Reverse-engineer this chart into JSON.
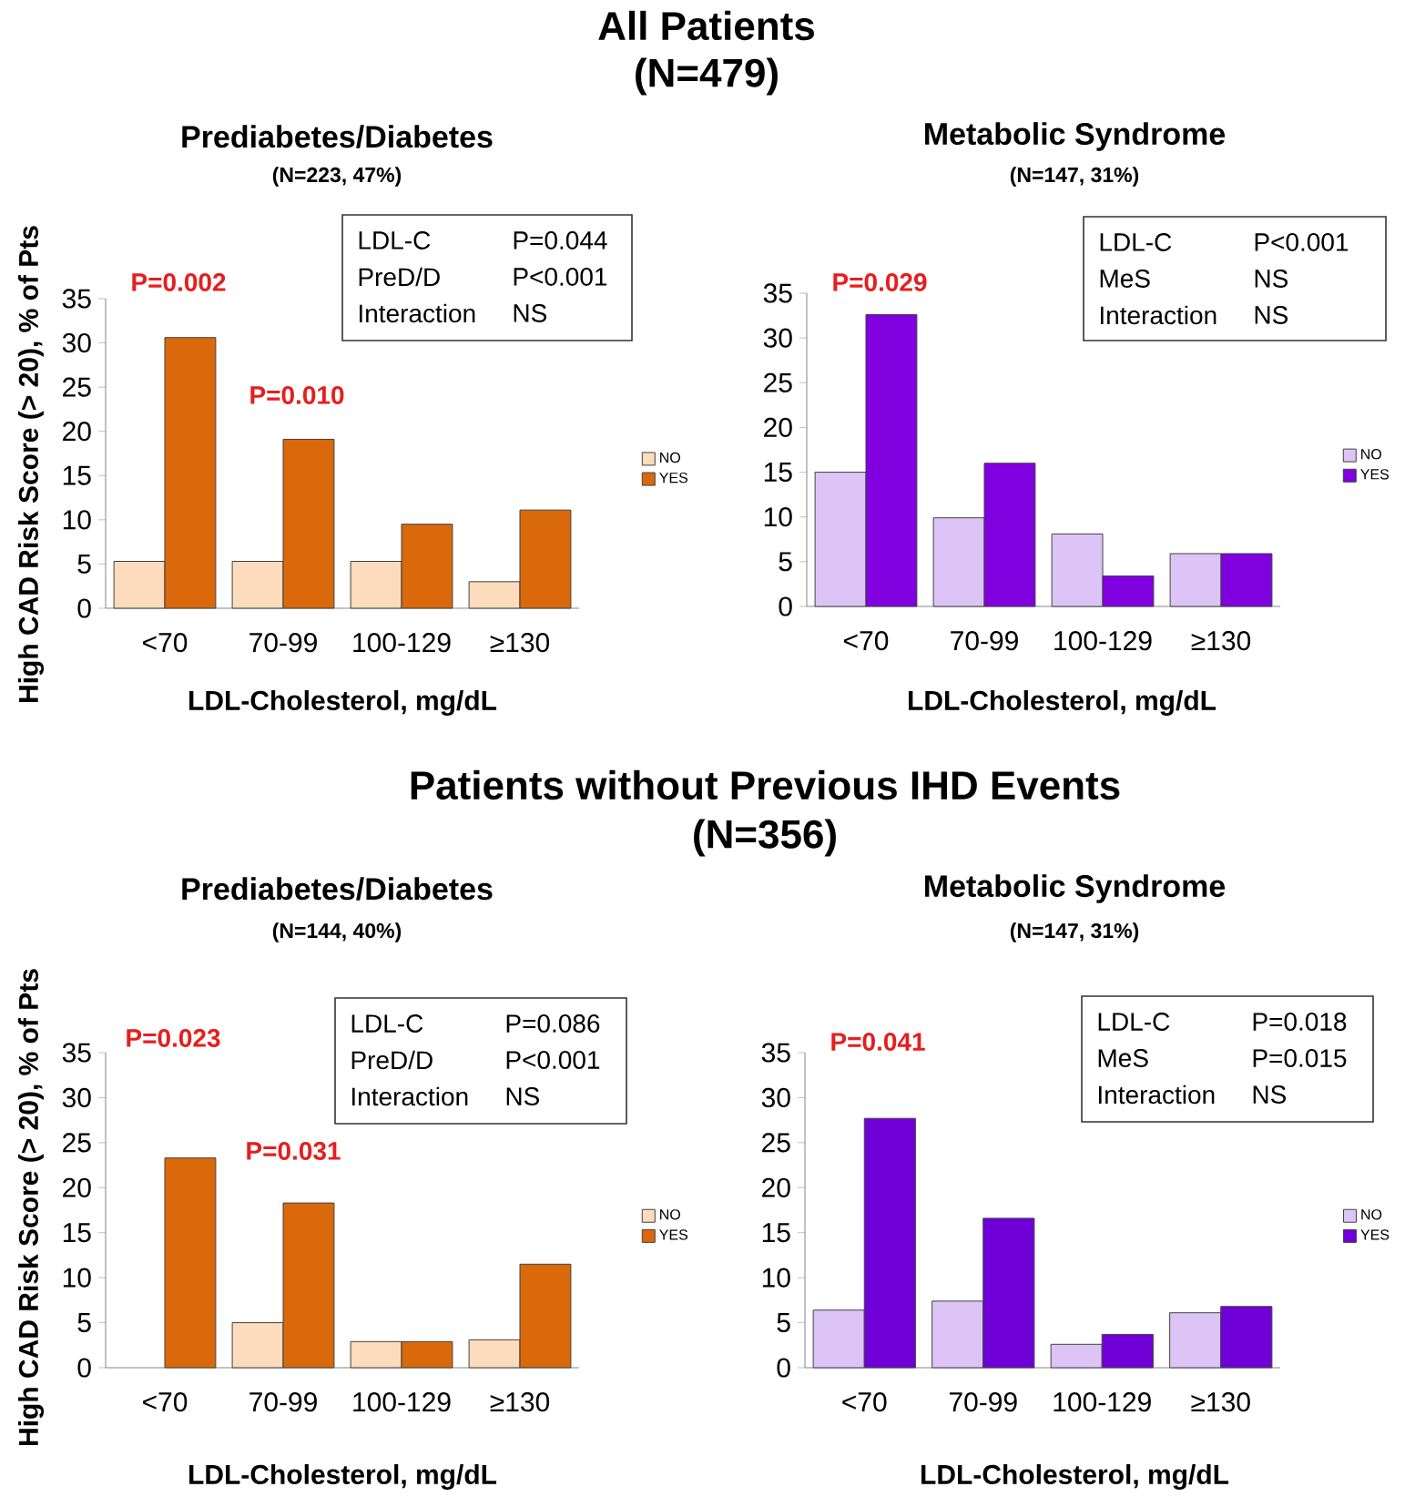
{
  "chart_data": [
    {
      "type": "bar",
      "title": "Prediabetes/Diabetes",
      "subtitle": "(N=223, 47%)",
      "ylabel": "High CAD Risk Score (> 20), % of Pts",
      "xlabel": "LDL-Cholesterol, mg/dL",
      "categories": [
        "<70",
        "70-99",
        "100-129",
        "≥130"
      ],
      "series": [
        {
          "name": "NO",
          "color": "#fcdcbc",
          "values": [
            5.3,
            5.3,
            5.3,
            3.0
          ]
        },
        {
          "name": "YES",
          "color": "#d9690a",
          "values": [
            30.6,
            19.1,
            9.5,
            11.1
          ]
        }
      ],
      "ylim": [
        0,
        35
      ],
      "yticks": [
        0,
        5,
        10,
        15,
        20,
        25,
        30,
        35
      ],
      "legend": "right",
      "annotations": [
        "All Patients",
        "(N=479)",
        "LDL-C",
        "P=0.044",
        "PreD/D",
        "P<0.001",
        "Interaction",
        "NS",
        "P=0.002",
        "P=0.010"
      ]
    },
    {
      "type": "bar",
      "title": "Metabolic Syndrome",
      "subtitle": "(N=147, 31%)",
      "xlabel": "LDL-Cholesterol, mg/dL",
      "categories": [
        "<70",
        "70-99",
        "100-129",
        "≥130"
      ],
      "series": [
        {
          "name": "NO",
          "color": "#dcc4f6",
          "values": [
            15,
            9.9,
            8.1,
            5.9
          ]
        },
        {
          "name": "YES",
          "color": "#8000e0",
          "values": [
            32.6,
            16,
            3.4,
            5.9
          ]
        }
      ],
      "ylim": [
        0,
        35
      ],
      "yticks": [
        0,
        5,
        10,
        15,
        20,
        25,
        30,
        35
      ],
      "legend": "right",
      "annotations": [
        "LDL-C",
        "P<0.001",
        "MeS",
        "NS",
        "Interaction",
        "NS",
        "P=0.029"
      ]
    },
    {
      "type": "bar",
      "title": "Prediabetes/Diabetes",
      "subtitle": "(N=144, 40%)",
      "ylabel": "High CAD Risk Score (> 20), % of Pts",
      "xlabel": "LDL-Cholesterol, mg/dL",
      "categories": [
        "<70",
        "70-99",
        "100-129",
        "≥130"
      ],
      "series": [
        {
          "name": "NO",
          "color": "#fcdcbc",
          "values": [
            null,
            5,
            2.9,
            3.1
          ]
        },
        {
          "name": "YES",
          "color": "#d9690a",
          "values": [
            23.3,
            18.3,
            2.9,
            11.5
          ]
        }
      ],
      "ylim": [
        0,
        35
      ],
      "yticks": [
        0,
        5,
        10,
        15,
        20,
        25,
        30,
        35
      ],
      "legend": "right",
      "annotations": [
        "Patients without Previous IHD Events",
        "(N=356)",
        "LDL-C",
        "P=0.086",
        "PreD/D",
        "P<0.001",
        "Interaction",
        "NS",
        "P=0.023",
        "P=0.031"
      ]
    },
    {
      "type": "bar",
      "title": "Metabolic Syndrome",
      "subtitle": "(N=147, 31%)",
      "xlabel": "LDL-Cholesterol, mg/dL",
      "categories": [
        "<70",
        "70-99",
        "100-129",
        "≥130"
      ],
      "series": [
        {
          "name": "NO",
          "color": "#dcc4f6",
          "values": [
            6.4,
            7.4,
            2.6,
            6.1
          ]
        },
        {
          "name": "YES",
          "color": "#7000d8",
          "values": [
            27.7,
            16.6,
            3.7,
            6.8
          ]
        }
      ],
      "ylim": [
        0,
        35
      ],
      "yticks": [
        0,
        5,
        10,
        15,
        20,
        25,
        30,
        35
      ],
      "legend": "right",
      "annotations": [
        "LDL-C",
        "P=0.018",
        "MeS",
        "P=0.015",
        "Interaction",
        "NS",
        "P=0.041"
      ]
    }
  ]
}
